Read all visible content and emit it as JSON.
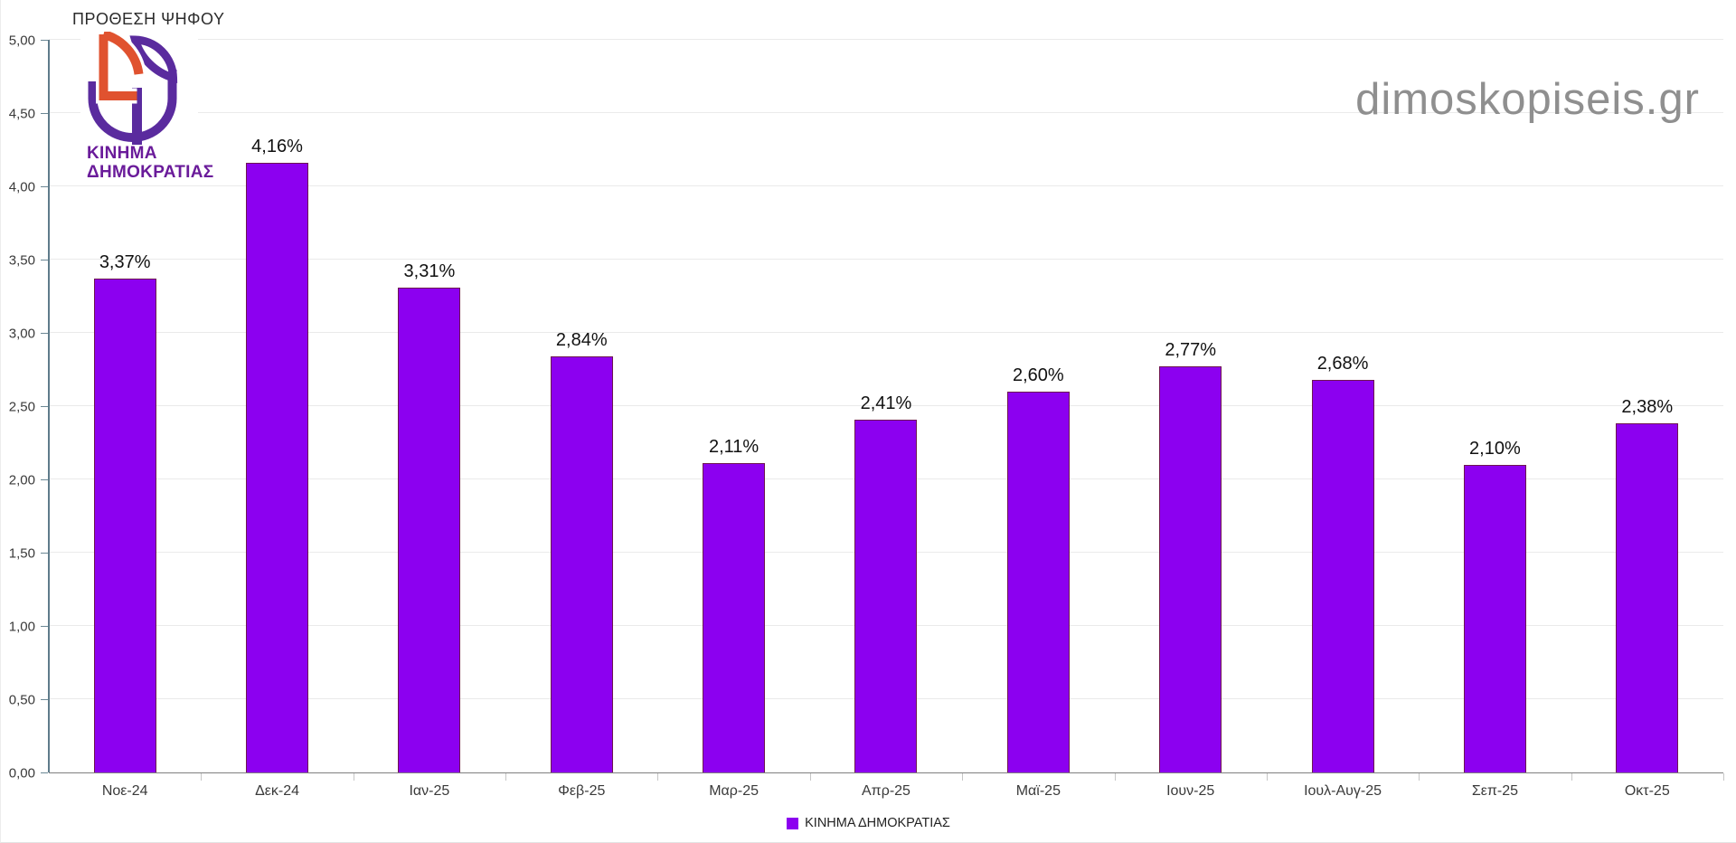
{
  "header": {
    "title": "ΠΡΟΘΕΣΗ ΨΗΦΟΥ"
  },
  "watermark": {
    "text": "dimoskopiseis.gr",
    "color": "#8f8f8f"
  },
  "logo": {
    "line1": "ΚΙΝΗΜΑ",
    "line2": "ΔΗΜΟΚΡΑΤΙΑΣ",
    "purple": "#5A2B9E",
    "orange": "#E0522F",
    "text_color": "#6A1B9A"
  },
  "legend": {
    "label": "ΚΙΝΗΜΑ ΔΗΜΟΚΡΑΤΙΑΣ"
  },
  "chart_data": {
    "type": "bar",
    "title": "ΠΡΟΘΕΣΗ ΨΗΦΟΥ",
    "categories": [
      "Νοε-24",
      "Δεκ-24",
      "Ιαν-25",
      "Φεβ-25",
      "Μαρ-25",
      "Απρ-25",
      "Μαϊ-25",
      "Ιουν-25",
      "Ιουλ-Αυγ-25",
      "Σεπ-25",
      "Οκτ-25"
    ],
    "series": [
      {
        "name": "ΚΙΝΗΜΑ ΔΗΜΟΚΡΑΤΙΑΣ",
        "values": [
          3.37,
          4.16,
          3.31,
          2.84,
          2.11,
          2.41,
          2.6,
          2.77,
          2.68,
          2.1,
          2.38
        ]
      }
    ],
    "data_labels": [
      "3,37%",
      "4,16%",
      "3,31%",
      "2,84%",
      "2,11%",
      "2,41%",
      "2,60%",
      "2,77%",
      "2,68%",
      "2,10%",
      "2,38%"
    ],
    "xlabel": "",
    "ylabel": "",
    "ylim": [
      0,
      5
    ],
    "ytick_step": 0.5,
    "ytick_labels": [
      "0,00",
      "0,50",
      "1,00",
      "1,50",
      "2,00",
      "2,50",
      "3,00",
      "3,50",
      "4,00",
      "4,50",
      "5,00"
    ],
    "grid": true,
    "legend_position": "bottom",
    "bar_color": "#8C00F0",
    "bar_border_color": "#6E1650"
  }
}
